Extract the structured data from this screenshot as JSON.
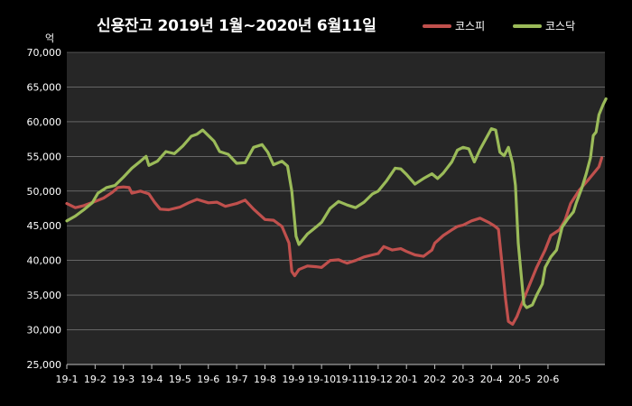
{
  "chart_data": {
    "type": "line",
    "title": "신용잔고 2019년 1월~2020년 6월11일",
    "unit_label": "억",
    "ylim": [
      25000,
      70000
    ],
    "y_ticks": [
      "25,000",
      "30,000",
      "35,000",
      "40,000",
      "45,000",
      "50,000",
      "55,000",
      "60,000",
      "65,000",
      "70,000"
    ],
    "y_tick_values": [
      25000,
      30000,
      35000,
      40000,
      45000,
      50000,
      55000,
      60000,
      65000,
      70000
    ],
    "x_ticks": [
      "19-1",
      "19-2",
      "19-3",
      "19-4",
      "19-5",
      "19-6",
      "19-7",
      "19-8",
      "19-9",
      "19-10",
      "19-11",
      "19-12",
      "20-1",
      "20-2",
      "20-3",
      "20-4",
      "20-5",
      "20-6"
    ],
    "grid": true,
    "legend_position": "top-right",
    "series": [
      {
        "name": "코스피",
        "color": "#c0504d",
        "values": [
          [
            0,
            48200
          ],
          [
            0.3,
            47600
          ],
          [
            0.6,
            47900
          ],
          [
            1.0,
            48500
          ],
          [
            1.3,
            49000
          ],
          [
            1.6,
            49800
          ],
          [
            1.8,
            50500
          ],
          [
            2.0,
            50600
          ],
          [
            2.2,
            50500
          ],
          [
            2.3,
            49700
          ],
          [
            2.6,
            50000
          ],
          [
            2.9,
            49600
          ],
          [
            3.1,
            48400
          ],
          [
            3.3,
            47400
          ],
          [
            3.6,
            47300
          ],
          [
            4.0,
            47700
          ],
          [
            4.3,
            48300
          ],
          [
            4.6,
            48800
          ],
          [
            5.0,
            48300
          ],
          [
            5.3,
            48400
          ],
          [
            5.6,
            47800
          ],
          [
            6.0,
            48200
          ],
          [
            6.3,
            48700
          ],
          [
            6.6,
            47400
          ],
          [
            7.0,
            45900
          ],
          [
            7.3,
            45800
          ],
          [
            7.6,
            44900
          ],
          [
            7.85,
            42500
          ],
          [
            7.95,
            38400
          ],
          [
            8.05,
            37800
          ],
          [
            8.2,
            38700
          ],
          [
            8.5,
            39200
          ],
          [
            8.8,
            39100
          ],
          [
            9.0,
            39000
          ],
          [
            9.3,
            40000
          ],
          [
            9.6,
            40100
          ],
          [
            9.9,
            39600
          ],
          [
            10.2,
            40000
          ],
          [
            10.5,
            40500
          ],
          [
            10.8,
            40800
          ],
          [
            11.0,
            41000
          ],
          [
            11.2,
            42000
          ],
          [
            11.5,
            41500
          ],
          [
            11.8,
            41700
          ],
          [
            12.0,
            41300
          ],
          [
            12.3,
            40800
          ],
          [
            12.6,
            40600
          ],
          [
            12.9,
            41500
          ],
          [
            13.0,
            42500
          ],
          [
            13.3,
            43600
          ],
          [
            13.6,
            44400
          ],
          [
            13.8,
            44900
          ],
          [
            14.0,
            45100
          ],
          [
            14.3,
            45700
          ],
          [
            14.6,
            46100
          ],
          [
            14.9,
            45500
          ],
          [
            15.1,
            45000
          ],
          [
            15.25,
            44500
          ],
          [
            15.4,
            38500
          ],
          [
            15.5,
            34500
          ],
          [
            15.6,
            31200
          ],
          [
            15.75,
            30800
          ],
          [
            15.9,
            31900
          ],
          [
            16.1,
            34000
          ],
          [
            16.3,
            36000
          ],
          [
            16.6,
            39000
          ],
          [
            16.9,
            41500
          ],
          [
            17.1,
            43600
          ],
          [
            17.4,
            44400
          ],
          [
            17.6,
            45800
          ],
          [
            17.8,
            48200
          ],
          [
            18.1,
            50100
          ],
          [
            18.4,
            51500
          ],
          [
            18.6,
            52500
          ],
          [
            18.8,
            53500
          ],
          [
            18.9,
            54800
          ]
        ]
      },
      {
        "name": "코스닥",
        "color": "#9bbb59",
        "values": [
          [
            0,
            45700
          ],
          [
            0.3,
            46400
          ],
          [
            0.6,
            47300
          ],
          [
            0.9,
            48300
          ],
          [
            1.1,
            49700
          ],
          [
            1.4,
            50500
          ],
          [
            1.7,
            50800
          ],
          [
            2.0,
            52000
          ],
          [
            2.3,
            53300
          ],
          [
            2.6,
            54300
          ],
          [
            2.8,
            55000
          ],
          [
            2.9,
            53700
          ],
          [
            3.2,
            54300
          ],
          [
            3.5,
            55700
          ],
          [
            3.8,
            55400
          ],
          [
            4.1,
            56500
          ],
          [
            4.4,
            57900
          ],
          [
            4.6,
            58200
          ],
          [
            4.8,
            58800
          ],
          [
            5.0,
            58000
          ],
          [
            5.2,
            57200
          ],
          [
            5.4,
            55700
          ],
          [
            5.7,
            55300
          ],
          [
            6.0,
            54000
          ],
          [
            6.3,
            54100
          ],
          [
            6.6,
            56300
          ],
          [
            6.9,
            56700
          ],
          [
            7.1,
            55600
          ],
          [
            7.3,
            53800
          ],
          [
            7.6,
            54300
          ],
          [
            7.8,
            53600
          ],
          [
            7.95,
            50000
          ],
          [
            8.1,
            43500
          ],
          [
            8.2,
            42300
          ],
          [
            8.5,
            43800
          ],
          [
            8.8,
            44800
          ],
          [
            9.0,
            45500
          ],
          [
            9.3,
            47500
          ],
          [
            9.6,
            48500
          ],
          [
            9.9,
            48000
          ],
          [
            10.2,
            47600
          ],
          [
            10.5,
            48400
          ],
          [
            10.8,
            49600
          ],
          [
            11.0,
            50000
          ],
          [
            11.3,
            51500
          ],
          [
            11.6,
            53300
          ],
          [
            11.8,
            53200
          ],
          [
            12.0,
            52400
          ],
          [
            12.3,
            51000
          ],
          [
            12.6,
            51800
          ],
          [
            12.9,
            52500
          ],
          [
            13.1,
            51800
          ],
          [
            13.3,
            52600
          ],
          [
            13.6,
            54200
          ],
          [
            13.8,
            55900
          ],
          [
            14.0,
            56300
          ],
          [
            14.2,
            56100
          ],
          [
            14.4,
            54200
          ],
          [
            14.6,
            56000
          ],
          [
            14.8,
            57500
          ],
          [
            15.0,
            59000
          ],
          [
            15.15,
            58800
          ],
          [
            15.3,
            55600
          ],
          [
            15.45,
            55100
          ],
          [
            15.6,
            56300
          ],
          [
            15.75,
            54000
          ],
          [
            15.85,
            50800
          ],
          [
            15.95,
            42500
          ],
          [
            16.05,
            38000
          ],
          [
            16.15,
            33700
          ],
          [
            16.25,
            33200
          ],
          [
            16.45,
            33600
          ],
          [
            16.6,
            35000
          ],
          [
            16.8,
            36600
          ],
          [
            16.9,
            39000
          ],
          [
            17.1,
            40500
          ],
          [
            17.3,
            41500
          ],
          [
            17.5,
            44800
          ],
          [
            17.7,
            46000
          ],
          [
            17.9,
            47000
          ],
          [
            18.0,
            48300
          ],
          [
            18.2,
            50500
          ],
          [
            18.35,
            52500
          ],
          [
            18.5,
            54800
          ],
          [
            18.6,
            58000
          ],
          [
            18.7,
            58500
          ],
          [
            18.8,
            61000
          ],
          [
            18.95,
            62500
          ],
          [
            19.05,
            63300
          ]
        ]
      }
    ]
  }
}
